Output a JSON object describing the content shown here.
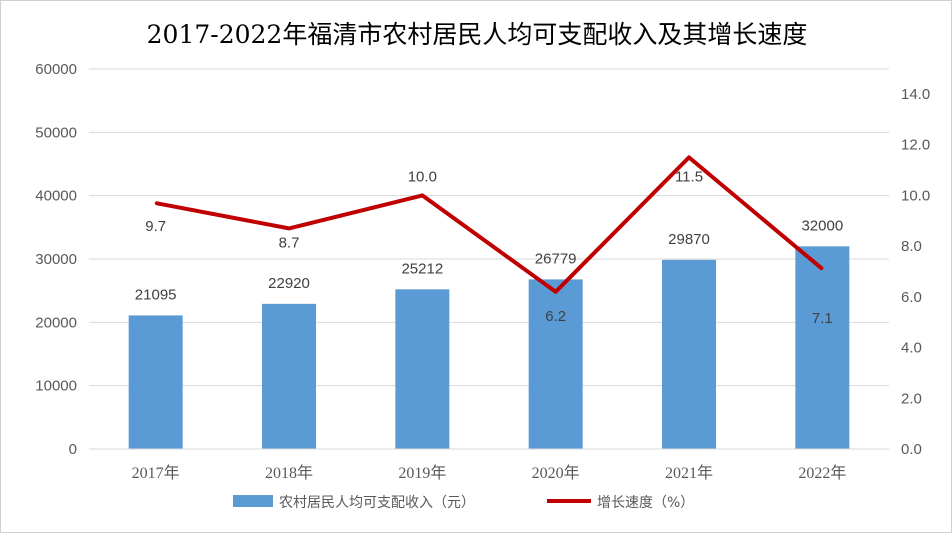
{
  "chart_data": {
    "type": "bar+line",
    "title": "2017-2022年福清市农村居民人均可支配收入及其增长速度",
    "categories": [
      "2017年",
      "2018年",
      "2019年",
      "2020年",
      "2021年",
      "2022年"
    ],
    "series": [
      {
        "name": "农村居民人均可支配收入（元）",
        "type": "bar",
        "axis": "left",
        "color": "#5b9bd5",
        "values": [
          21095,
          22920,
          25212,
          26779,
          29870,
          32000
        ]
      },
      {
        "name": "增长速度（%）",
        "type": "line",
        "axis": "right",
        "color": "#c00000",
        "values": [
          9.7,
          8.7,
          10.0,
          6.2,
          11.5,
          7.1
        ]
      }
    ],
    "ylim_left": [
      0,
      60000
    ],
    "yticks_left": [
      "0",
      "10000",
      "20000",
      "30000",
      "40000",
      "50000",
      "60000"
    ],
    "ylim_right": [
      0,
      14
    ],
    "yticks_right": [
      "0.0",
      "2.0",
      "4.0",
      "6.0",
      "8.0",
      "10.0",
      "12.0",
      "14.0"
    ],
    "grid": true,
    "legend": "bottom"
  }
}
